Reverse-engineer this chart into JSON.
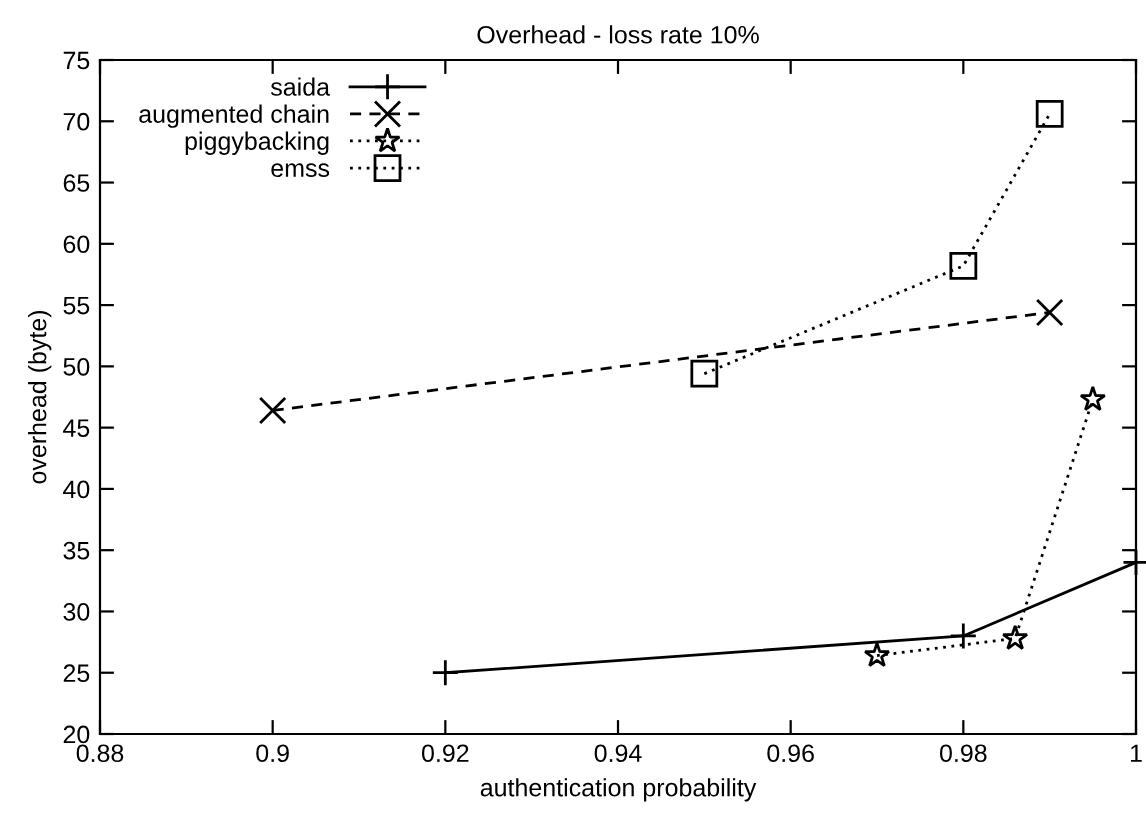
{
  "chart_data": {
    "type": "line",
    "title": "Overhead - loss rate 10%",
    "xlabel": "authentication probability",
    "ylabel": "overhead (byte)",
    "xlim": [
      0.88,
      1
    ],
    "xticks": [
      {
        "value": 0.88,
        "label": "0.88"
      },
      {
        "value": 0.9,
        "label": "0.9"
      },
      {
        "value": 0.92,
        "label": "0.92"
      },
      {
        "value": 0.94,
        "label": "0.94"
      },
      {
        "value": 0.96,
        "label": "0.96"
      },
      {
        "value": 0.98,
        "label": "0.98"
      },
      {
        "value": 1,
        "label": "1"
      }
    ],
    "ylim": [
      20,
      75
    ],
    "yticks": [
      20,
      25,
      30,
      35,
      40,
      45,
      50,
      55,
      60,
      65,
      70,
      75
    ],
    "grid": false,
    "legend": "top left",
    "series": [
      {
        "name": "saida",
        "color": "#000000",
        "marker": "plus",
        "line_style": "solid",
        "x": [
          0.92,
          0.98,
          1.0
        ],
        "values": [
          25,
          28,
          34
        ]
      },
      {
        "name": "augmented chain",
        "color": "#000000",
        "marker": "cross",
        "line_style": "dashed",
        "x": [
          0.9,
          0.99
        ],
        "values": [
          46.4,
          54.4
        ]
      },
      {
        "name": "piggybacking",
        "color": "#000000",
        "marker": "star",
        "line_style": "dotted",
        "x": [
          0.97,
          0.986,
          0.995
        ],
        "values": [
          26.4,
          27.8,
          47.3
        ]
      },
      {
        "name": "emss",
        "color": "#000000",
        "marker": "square",
        "line_style": "dotted",
        "x": [
          0.95,
          0.98,
          0.99
        ],
        "values": [
          49.4,
          58.2,
          70.6
        ]
      }
    ]
  }
}
